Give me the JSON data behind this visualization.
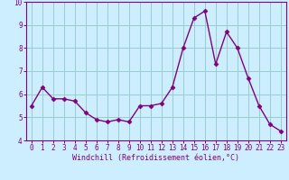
{
  "x": [
    0,
    1,
    2,
    3,
    4,
    5,
    6,
    7,
    8,
    9,
    10,
    11,
    12,
    13,
    14,
    15,
    16,
    17,
    18,
    19,
    20,
    21,
    22,
    23
  ],
  "y": [
    5.5,
    6.3,
    5.8,
    5.8,
    5.7,
    5.2,
    4.9,
    4.8,
    4.9,
    4.8,
    5.5,
    5.5,
    5.6,
    6.3,
    8.0,
    9.3,
    9.6,
    7.3,
    8.7,
    8.0,
    6.7,
    5.5,
    4.7,
    4.4
  ],
  "line_color": "#800080",
  "marker": "D",
  "marker_size": 2.5,
  "bg_color": "#cceeff",
  "grid_color": "#99cccc",
  "bottom_bar_color": "#800080",
  "xlabel": "Windchill (Refroidissement éolien,°C)",
  "xlabel_color": "#800080",
  "tick_color": "#800080",
  "spine_color": "#800080",
  "ylim": [
    4,
    10
  ],
  "xlim": [
    -0.5,
    23.5
  ],
  "yticks": [
    4,
    5,
    6,
    7,
    8,
    9,
    10
  ],
  "xticks": [
    0,
    1,
    2,
    3,
    4,
    5,
    6,
    7,
    8,
    9,
    10,
    11,
    12,
    13,
    14,
    15,
    16,
    17,
    18,
    19,
    20,
    21,
    22,
    23
  ],
  "tick_fontsize": 5.5,
  "xlabel_fontsize": 6.0,
  "linewidth": 1.0
}
